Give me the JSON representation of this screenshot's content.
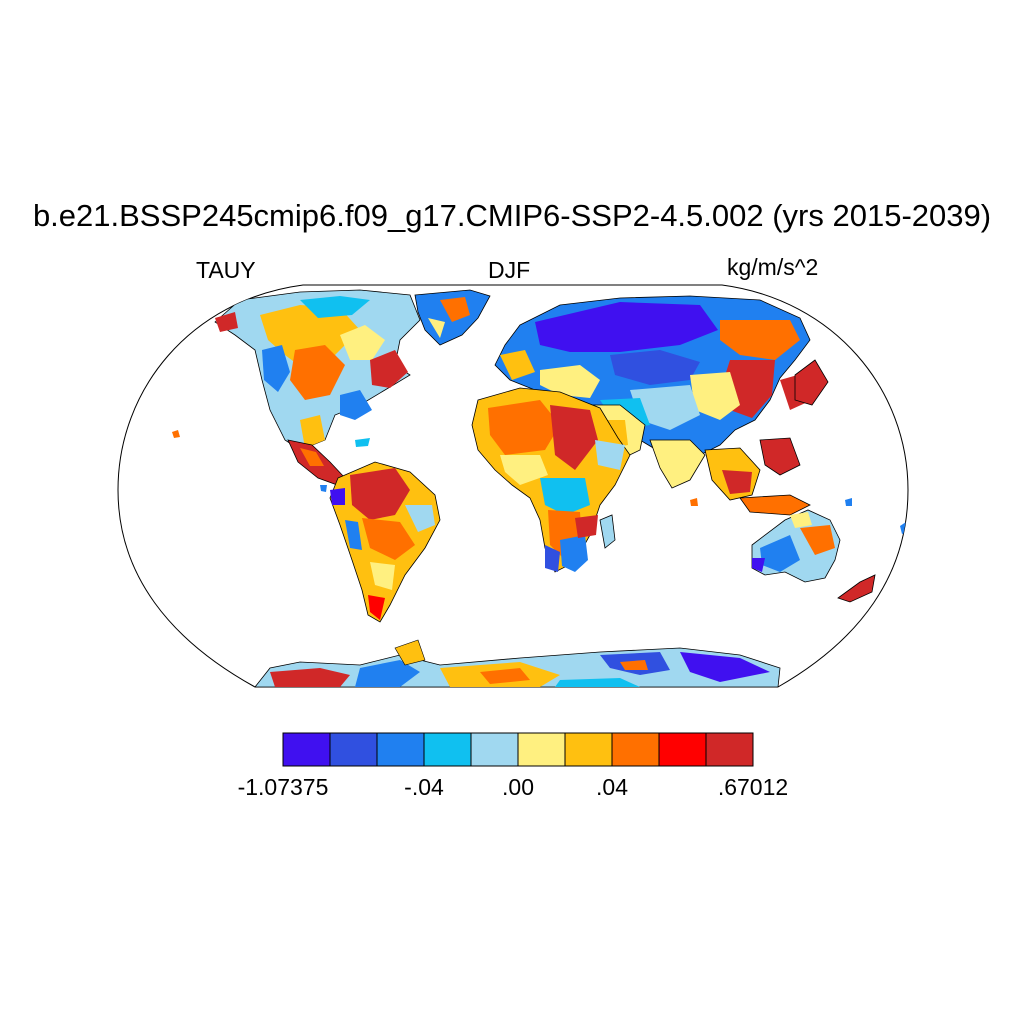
{
  "title": "b.e21.BSSP245cmip6.f09_g17.CMIP6-SSP2-4.5.002 (yrs 2015-2039)",
  "variable": "TAUY",
  "season": "DJF",
  "units": "kg/m/s^2",
  "map": {
    "projection": "Robinson",
    "field": "surface meridional wind stress anomaly over land"
  },
  "colorbar": {
    "colors": [
      "#4010f0",
      "#3050e0",
      "#2080f0",
      "#10c0f0",
      "#a0d8f0",
      "#fff080",
      "#ffc010",
      "#ff7000",
      "#ff0000",
      "#d02828"
    ],
    "labels": [
      {
        "text": "-1.07375",
        "boundary": 0
      },
      {
        "text": "-.04",
        "boundary": 3
      },
      {
        "text": ".00",
        "boundary": 5
      },
      {
        "text": ".04",
        "boundary": 7
      },
      {
        "text": ".67012",
        "boundary": 10
      }
    ]
  }
}
